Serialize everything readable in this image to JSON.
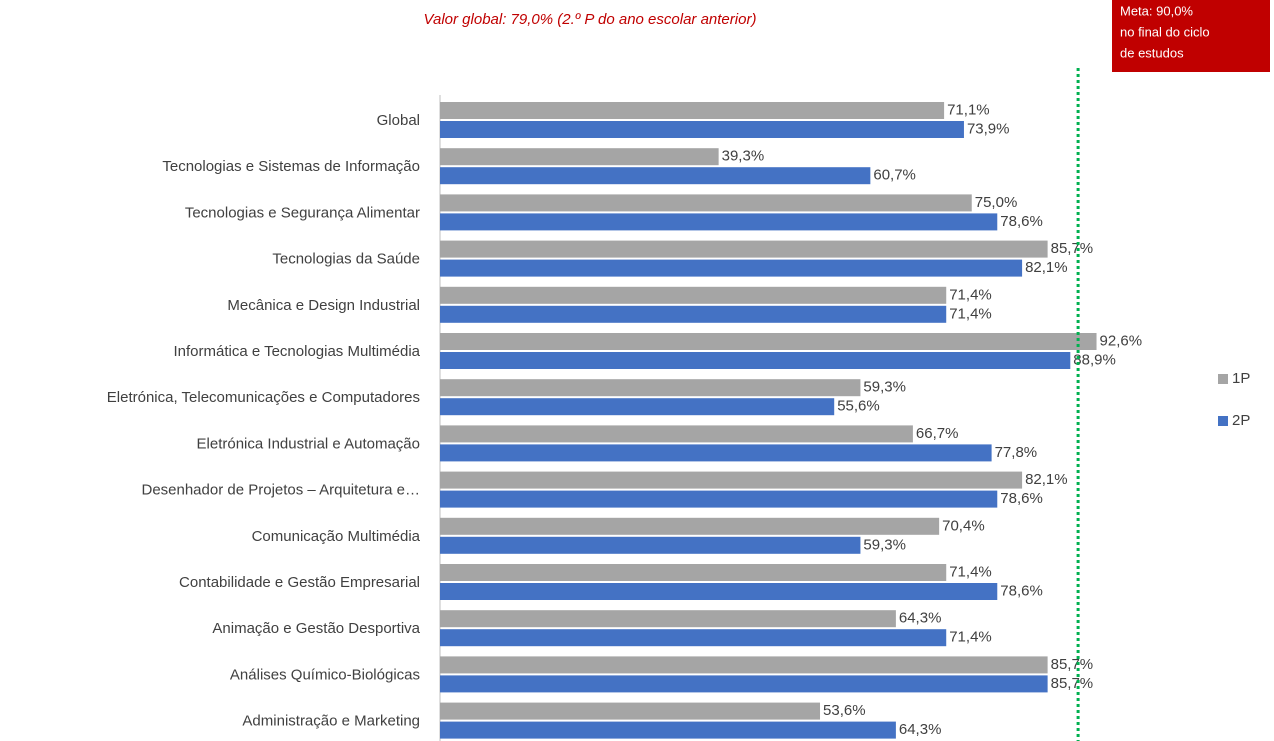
{
  "chart_data": {
    "type": "hbar",
    "title": "Valor global: 79,0% (2.º P do ano escolar anterior)",
    "annotation": [
      "Meta: 90,0%",
      "no final do ciclo",
      "de estudos"
    ],
    "target": 90,
    "categories": [
      "Global",
      "Tecnologias e Sistemas de Informação",
      "Tecnologias e Segurança Alimentar",
      "Tecnologias da Saúde",
      "Mecânica e Design Industrial",
      "Informática e Tecnologias Multimédia",
      "Eletrónica, Telecomunicações e Computadores",
      "Eletrónica Industrial e Automação",
      "Desenhador de Projetos – Arquitetura e…",
      "Comunicação Multimédia",
      "Contabilidade e Gestão Empresarial",
      "Animação e Gestão Desportiva",
      "Análises Químico-Biológicas",
      "Administração e Marketing"
    ],
    "series": [
      {
        "name": "1P",
        "color": "#a5a5a5",
        "values": [
          71.1,
          39.3,
          75.0,
          85.7,
          71.4,
          92.6,
          59.3,
          66.7,
          82.1,
          70.4,
          71.4,
          64.3,
          85.7,
          53.6
        ],
        "value_labels": [
          "71,1%",
          "39,3%",
          "75,0%",
          "85,7%",
          "71,4%",
          "92,6%",
          "59,3%",
          "66,7%",
          "82,1%",
          "70,4%",
          "71,4%",
          "64,3%",
          "85,7%",
          "53,6%"
        ]
      },
      {
        "name": "2P",
        "color": "#4472c4",
        "values": [
          73.9,
          60.7,
          78.6,
          82.1,
          71.4,
          88.9,
          55.6,
          77.8,
          78.6,
          59.3,
          78.6,
          71.4,
          85.7,
          64.3
        ],
        "value_labels": [
          "73,9%",
          "60,7%",
          "78,6%",
          "82,1%",
          "71,4%",
          "88,9%",
          "55,6%",
          "77,8%",
          "78,6%",
          "59,3%",
          "78,6%",
          "71,4%",
          "85,7%",
          "64,3%"
        ]
      }
    ],
    "xlim": [
      0,
      100
    ],
    "legend": "right"
  }
}
